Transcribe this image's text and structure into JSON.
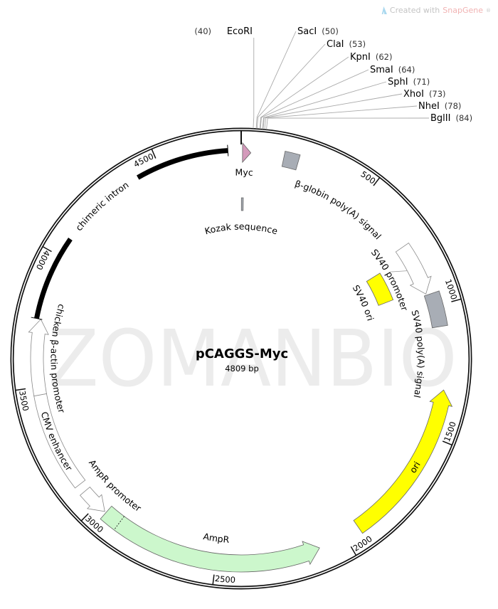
{
  "watermark": "ZOMANBIO",
  "credit": {
    "prefix": "Created with",
    "brand": "SnapGene",
    "suffix": "®",
    "icon": "snapgene-logo-icon"
  },
  "plasmid": {
    "name": "pCAGGS-Myc",
    "length_label": "4809 bp",
    "length": 4809
  },
  "ticks": [
    {
      "bp": 500,
      "label": "500"
    },
    {
      "bp": 1000,
      "label": "1000"
    },
    {
      "bp": 1500,
      "label": "1500"
    },
    {
      "bp": 2000,
      "label": "2000"
    },
    {
      "bp": 2500,
      "label": "2500"
    },
    {
      "bp": 3000,
      "label": "3000"
    },
    {
      "bp": 3500,
      "label": "3500"
    },
    {
      "bp": 4000,
      "label": "4000"
    },
    {
      "bp": 4500,
      "label": "4500"
    }
  ],
  "sites": [
    {
      "name": "EcoRI",
      "bp": 40,
      "label": "(40)"
    },
    {
      "name": "SacI",
      "bp": 50,
      "label": "(50)"
    },
    {
      "name": "ClaI",
      "bp": 53,
      "label": "(53)"
    },
    {
      "name": "KpnI",
      "bp": 62,
      "label": "(62)"
    },
    {
      "name": "SmaI",
      "bp": 64,
      "label": "(64)"
    },
    {
      "name": "SphI",
      "bp": 71,
      "label": "(71)"
    },
    {
      "name": "XhoI",
      "bp": 73,
      "label": "(73)"
    },
    {
      "name": "NheI",
      "bp": 78,
      "label": "(78)"
    },
    {
      "name": "BglII",
      "bp": 84,
      "label": "(84)"
    }
  ],
  "features": [
    {
      "label": "Myc",
      "start": 5,
      "end": 36,
      "direction": "forward",
      "color": "#d49abb"
    },
    {
      "label": "Kozak sequence",
      "start": 1,
      "end": 10,
      "direction": "none",
      "color": "#a8adb5"
    },
    {
      "label": "β-globin poly(A) signal",
      "start": 160,
      "end": 216,
      "direction": "none",
      "color": "#a8adb5"
    },
    {
      "label": "SV40 promoter",
      "start": 740,
      "end": 945,
      "direction": "forward",
      "color": "#ffffff"
    },
    {
      "label": "SV40 ori",
      "start": 780,
      "end": 920,
      "direction": "none",
      "color": "#ffff00"
    },
    {
      "label": "SV40 poly(A) signal",
      "start": 950,
      "end": 1080,
      "direction": "none",
      "color": "#a8adb5"
    },
    {
      "label": "ori",
      "start": 1320,
      "end": 1940,
      "direction": "reverse",
      "color": "#ffff00"
    },
    {
      "label": "AmpR",
      "start": 2104,
      "end": 2956,
      "direction": "reverse",
      "color": "#ccf7cc"
    },
    {
      "label": "AmpR promoter",
      "start": 2962,
      "end": 3068,
      "direction": "reverse",
      "color": "#ffffff"
    },
    {
      "label": "CMV enhancer",
      "start": 3100,
      "end": 3470,
      "direction": "none",
      "color": "#ffffff"
    },
    {
      "label": "chicken β-actin promoter",
      "start": 3470,
      "end": 3755,
      "direction": "forward",
      "color": "#ffffff"
    },
    {
      "label": "chimeric intron",
      "start": 3755,
      "end": 4760,
      "direction": "none",
      "color": "#000000"
    }
  ]
}
